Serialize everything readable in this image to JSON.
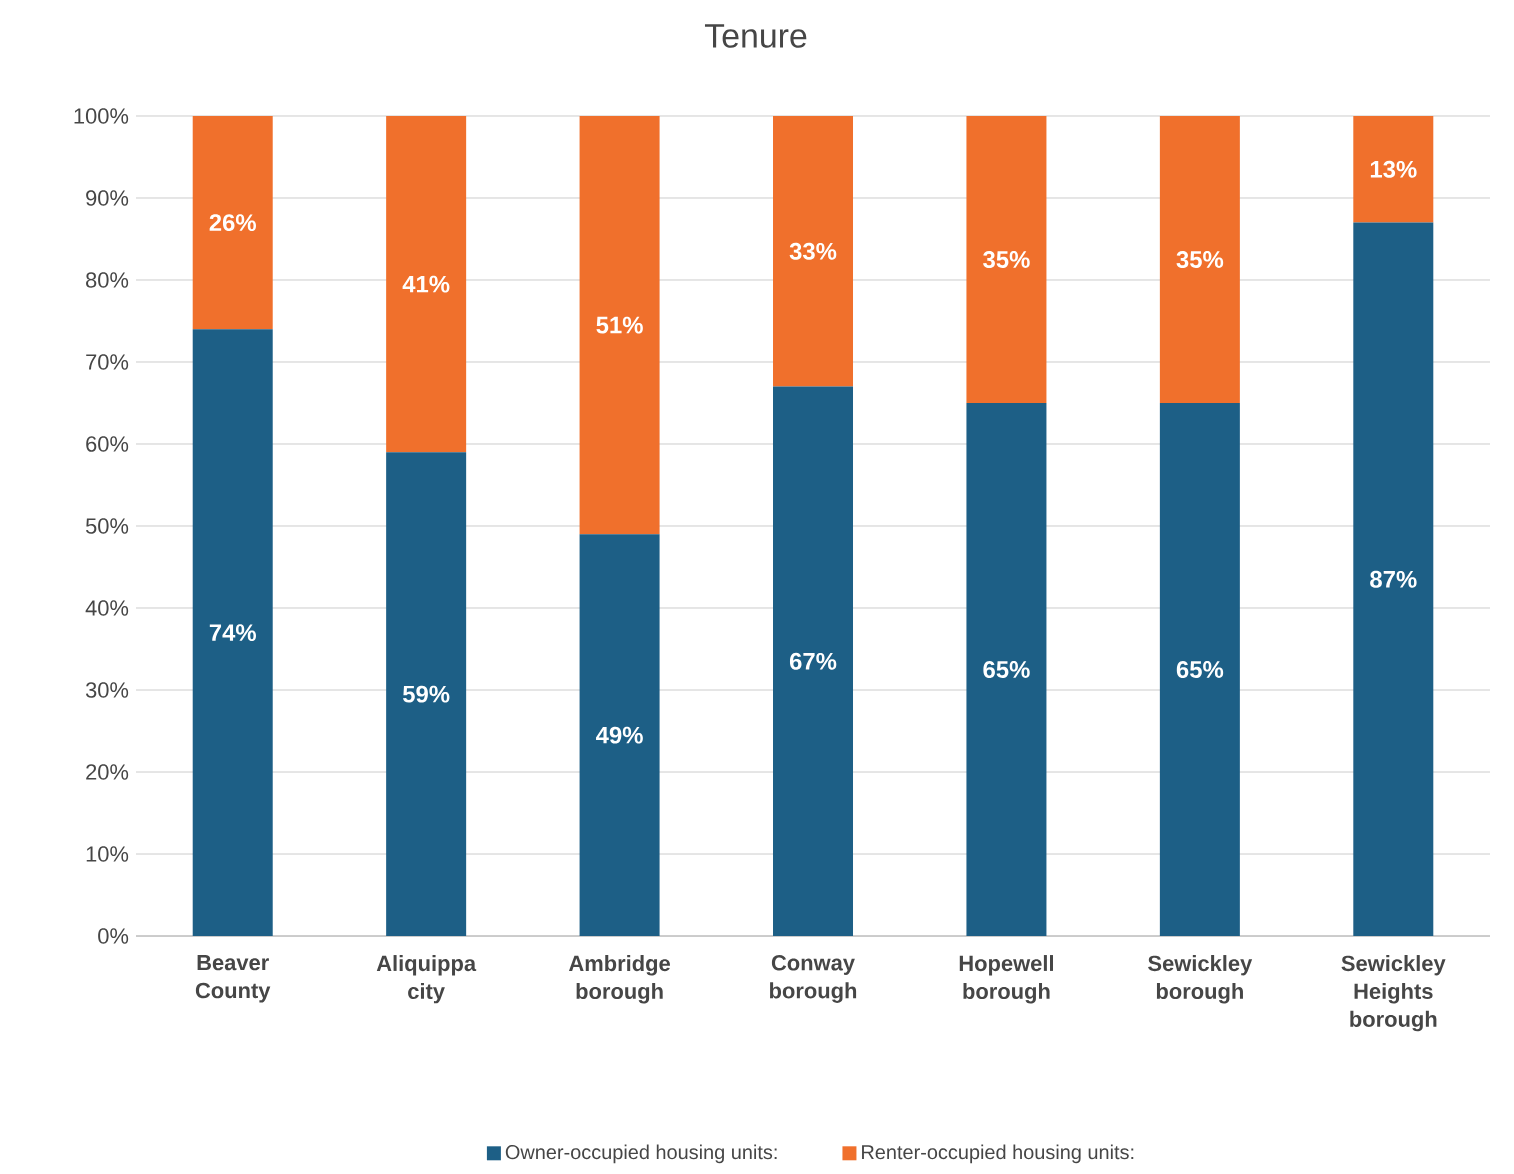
{
  "chart_data": {
    "type": "bar",
    "title": "Tenure",
    "stacked": true,
    "categories": [
      "Beaver County",
      "Aliquippa city",
      "Ambridge borough",
      "Conway borough",
      "Hopewell borough",
      "Sewickley borough",
      "Sewickley Heights borough"
    ],
    "series": [
      {
        "name": "Owner-occupied housing units:",
        "color": "#1d5f86",
        "values": [
          74,
          59,
          49,
          67,
          65,
          65,
          87
        ],
        "value_labels": [
          "74%",
          "59%",
          "49%",
          "67%",
          "65%",
          "65%",
          "87%"
        ]
      },
      {
        "name": "Renter-occupied housing units:",
        "color": "#f0702c",
        "values": [
          26,
          41,
          51,
          33,
          35,
          35,
          13
        ],
        "value_labels": [
          "26%",
          "41%",
          "51%",
          "33%",
          "35%",
          "35%",
          "13%"
        ]
      }
    ],
    "ylim": [
      0,
      100
    ],
    "yticks": [
      {
        "value": 0,
        "label": "0%"
      },
      {
        "value": 10,
        "label": "10%"
      },
      {
        "value": 20,
        "label": "20%"
      },
      {
        "value": 30,
        "label": "30%"
      },
      {
        "value": 40,
        "label": "40%"
      },
      {
        "value": 50,
        "label": "50%"
      },
      {
        "value": 60,
        "label": "60%"
      },
      {
        "value": 70,
        "label": "70%"
      },
      {
        "value": 80,
        "label": "80%"
      },
      {
        "value": 90,
        "label": "90%"
      },
      {
        "value": 100,
        "label": "100%"
      }
    ],
    "grid": "y",
    "legend": "bottom"
  }
}
